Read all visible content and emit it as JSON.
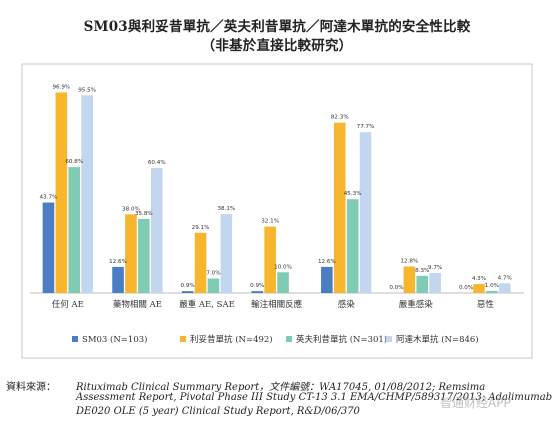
{
  "title": "SM03與利妥昔單抗／英夫利昔單抗／阿達木單抗的安全性比較",
  "subtitle": "（非基於直接比較研究）",
  "chart_data": {
    "type": "bar",
    "categories": [
      "任何 AE",
      "藥物相關 AE",
      "嚴重 AE, SAE",
      "輸注相關反應",
      "感染",
      "嚴重感染",
      "惡性"
    ],
    "series": [
      {
        "name": "SM03 (N=103)",
        "color": "#4a7dc4",
        "values": [
          43.7,
          12.6,
          0.9,
          0.9,
          12.6,
          0.0,
          0.0
        ],
        "labels": [
          "43.7%",
          "12.6%",
          "0.9%",
          "0.9%",
          "12.6%",
          "0.0%",
          "0.0%"
        ]
      },
      {
        "name": "利妥昔單抗 (N=492)",
        "color": "#f7b62d",
        "values": [
          96.9,
          38.0,
          29.1,
          32.1,
          82.3,
          12.8,
          4.3
        ],
        "labels": [
          "96.9%",
          "38.0%",
          "29.1%",
          "32.1%",
          "82.3%",
          "12.8%",
          "4.3%"
        ]
      },
      {
        "name": "英夫利昔單抗 (N=301)",
        "color": "#7fcbb4",
        "values": [
          60.8,
          35.8,
          7.0,
          10.0,
          45.3,
          8.3,
          1.0
        ],
        "labels": [
          "60.8%",
          "35.8%",
          "7.0%",
          "10.0%",
          "45.3%",
          "8.3%",
          "1.0%"
        ]
      },
      {
        "name": "阿達木單抗 (N=846)",
        "color": "#c2d6ef",
        "values": [
          95.5,
          60.4,
          38.1,
          0.0,
          77.7,
          9.7,
          4.7
        ],
        "labels": [
          "95.5%",
          "60.4%",
          "38.1%",
          "",
          "77.7%",
          "9.7%",
          "4.7%"
        ]
      }
    ],
    "ylim": [
      0,
      100
    ],
    "grid": false,
    "legend": "bottom"
  },
  "source": {
    "label": "資料來源：",
    "line1": "Rituximab Clinical Summary Report，文件編號：WA17045, 01/08/2012; Remsima",
    "line2": "Assessment Report, Pivotal Phase III Study CT-13 3.1 EMA/CHMP/589317/2013; Adalimumab",
    "line3": "DE020 OLE (5 year) Clinical Study Report, R&D/06/370"
  },
  "watermark": "智通财经APP"
}
